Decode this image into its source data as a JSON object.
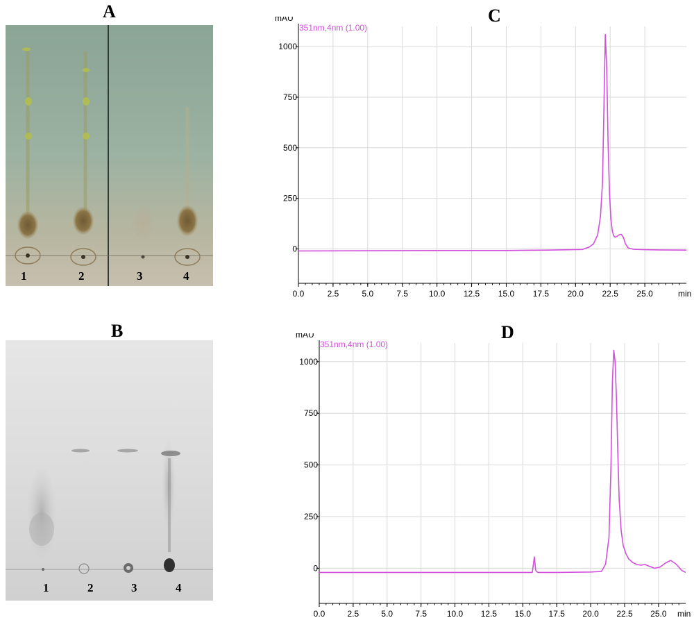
{
  "panels": {
    "A": {
      "letter": "A",
      "lanes": [
        "1",
        "2",
        "3",
        "4"
      ]
    },
    "B": {
      "letter": "B",
      "lanes": [
        "1",
        "2",
        "3",
        "4"
      ]
    }
  },
  "colors": {
    "trace": "#d24fdc",
    "grid": "#d9d9d9",
    "axis": "#000000"
  },
  "chart_data": [
    {
      "type": "line",
      "panel": "C",
      "title": "C",
      "ylabel": "mAU",
      "xlabel": "min",
      "series_label": "351nm,4nm (1.00)",
      "xlim": [
        0,
        28.0
      ],
      "ylim": [
        -170,
        1100
      ],
      "xticks": [
        0.0,
        2.5,
        5.0,
        7.5,
        10.0,
        12.5,
        15.0,
        17.5,
        20.0,
        22.5,
        25.0
      ],
      "xtick_labels": [
        "0.0",
        "2.5",
        "5.0",
        "7.5",
        "10.0",
        "12.5",
        "15.0",
        "17.5",
        "20.0",
        "22.5",
        "25.0"
      ],
      "yticks": [
        0,
        250,
        500,
        750,
        1000
      ],
      "ytick_labels": [
        "0",
        "250",
        "500",
        "750",
        "1000"
      ],
      "grid": true,
      "series": [
        {
          "x": [
            0.0,
            5.0,
            10.0,
            15.0,
            18.0,
            20.5,
            21.0,
            21.3,
            21.6,
            21.8,
            21.95,
            22.05,
            22.15,
            22.25,
            22.35,
            22.45,
            22.55,
            22.65,
            22.75,
            22.85,
            23.0,
            23.15,
            23.3,
            23.45,
            23.6,
            23.8,
            24.2,
            25.0,
            26.0,
            28.0
          ],
          "y": [
            -10,
            -9,
            -8,
            -8,
            -6,
            -3,
            10,
            25,
            70,
            160,
            330,
            700,
            1060,
            900,
            520,
            280,
            150,
            90,
            65,
            58,
            62,
            70,
            72,
            58,
            25,
            5,
            -2,
            -4,
            -5,
            -6
          ]
        }
      ]
    },
    {
      "type": "line",
      "panel": "D",
      "title": "D",
      "ylabel": "mAU",
      "xlabel": "min",
      "series_label": "351nm,4nm (1.00)",
      "xlim": [
        0,
        27.0
      ],
      "ylim": [
        -170,
        1090
      ],
      "xticks": [
        0.0,
        2.5,
        5.0,
        7.5,
        10.0,
        12.5,
        15.0,
        17.5,
        20.0,
        22.5,
        25.0
      ],
      "xtick_labels": [
        "0.0",
        "2.5",
        "5.0",
        "7.5",
        "10.0",
        "12.5",
        "15.0",
        "17.5",
        "20.0",
        "22.5",
        "25.0"
      ],
      "yticks": [
        0,
        250,
        500,
        750,
        1000
      ],
      "ytick_labels": [
        "0",
        "250",
        "500",
        "750",
        "1000"
      ],
      "grid": true,
      "series": [
        {
          "x": [
            0.0,
            5.0,
            10.0,
            15.0,
            15.7,
            15.85,
            15.95,
            16.1,
            17.5,
            20.0,
            20.8,
            21.1,
            21.35,
            21.5,
            21.6,
            21.7,
            21.8,
            21.9,
            22.0,
            22.1,
            22.25,
            22.4,
            22.6,
            22.8,
            23.1,
            23.4,
            23.7,
            24.0,
            24.3,
            24.7,
            25.1,
            25.5,
            25.9,
            26.3,
            26.7,
            27.0
          ],
          "y": [
            -20,
            -20,
            -20,
            -20,
            -20,
            55,
            -10,
            -20,
            -20,
            -18,
            -15,
            20,
            150,
            500,
            900,
            1055,
            1000,
            820,
            560,
            330,
            180,
            110,
            70,
            45,
            28,
            18,
            15,
            18,
            10,
            0,
            5,
            25,
            38,
            20,
            -10,
            -20
          ]
        }
      ]
    }
  ]
}
